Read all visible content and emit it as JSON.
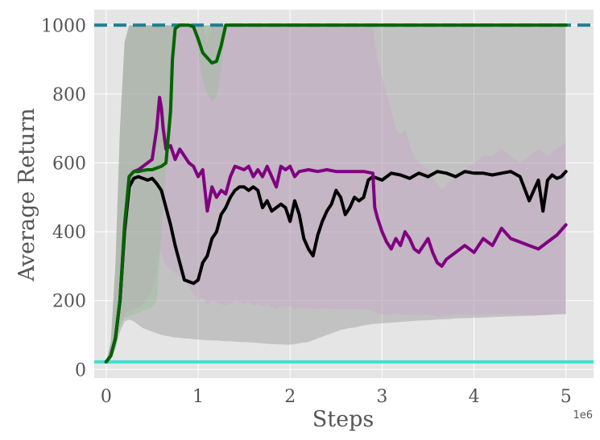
{
  "chart_data": {
    "type": "line",
    "xlabel": "Steps",
    "ylabel": "Average Return",
    "x_offset_label": "1e6",
    "xlim": [
      -0.13,
      5.3
    ],
    "ylim": [
      -25,
      1045
    ],
    "x_ticks": [
      0,
      1,
      2,
      3,
      4,
      5
    ],
    "y_ticks": [
      0,
      200,
      400,
      600,
      800,
      1000
    ],
    "grid": true,
    "background": "#e5e5e5",
    "reference_lines": [
      {
        "value": 1000,
        "color": "#1f7f8f",
        "style": "dashed"
      },
      {
        "value": 22,
        "color": "#40e0d0",
        "style": "solid"
      }
    ],
    "series": [
      {
        "color": "#000000",
        "band_color": "#808080",
        "x": [
          0,
          0.05,
          0.1,
          0.15,
          0.2,
          0.25,
          0.3,
          0.35,
          0.4,
          0.45,
          0.5,
          0.55,
          0.6,
          0.65,
          0.7,
          0.75,
          0.8,
          0.85,
          0.9,
          0.95,
          1.0,
          1.05,
          1.1,
          1.15,
          1.2,
          1.25,
          1.3,
          1.35,
          1.4,
          1.45,
          1.5,
          1.55,
          1.6,
          1.65,
          1.7,
          1.75,
          1.8,
          1.85,
          1.9,
          1.95,
          2.0,
          2.05,
          2.1,
          2.15,
          2.2,
          2.25,
          2.3,
          2.35,
          2.4,
          2.45,
          2.5,
          2.55,
          2.6,
          2.65,
          2.7,
          2.75,
          2.8,
          2.85,
          2.9,
          2.95,
          3.0,
          3.05,
          3.1,
          3.2,
          3.3,
          3.4,
          3.5,
          3.6,
          3.7,
          3.8,
          3.9,
          4.0,
          4.1,
          4.2,
          4.3,
          4.4,
          4.5,
          4.6,
          4.65,
          4.7,
          4.75,
          4.8,
          4.85,
          4.9,
          4.95,
          5.0
        ],
        "y": [
          22,
          40,
          90,
          200,
          400,
          530,
          555,
          560,
          555,
          550,
          555,
          540,
          520,
          470,
          420,
          360,
          310,
          260,
          255,
          250,
          260,
          310,
          330,
          380,
          400,
          450,
          470,
          500,
          520,
          530,
          530,
          520,
          530,
          520,
          470,
          490,
          460,
          470,
          480,
          470,
          430,
          490,
          450,
          380,
          350,
          330,
          390,
          430,
          460,
          480,
          520,
          500,
          450,
          470,
          500,
          490,
          500,
          550,
          560,
          555,
          550,
          560,
          570,
          565,
          555,
          570,
          560,
          575,
          570,
          560,
          575,
          570,
          570,
          565,
          570,
          575,
          560,
          490,
          520,
          550,
          460,
          550,
          565,
          555,
          560,
          575
        ],
        "upper": [
          22,
          80,
          300,
          700,
          950,
          1000,
          1000,
          1000,
          1000,
          1000,
          1000,
          1000,
          1000,
          1000,
          1000,
          1000,
          1000,
          1000,
          1000,
          1000,
          1000,
          1000,
          1000,
          1000,
          1000,
          1000,
          1000,
          1000,
          1000,
          1000,
          1000,
          1000,
          1000,
          1000,
          1000,
          1000,
          1000,
          1000,
          1000,
          1000,
          1000,
          1000,
          1000,
          1000,
          1000,
          1000,
          1000,
          1000,
          1000,
          1000,
          1000,
          1000,
          1000,
          1000,
          1000,
          1000,
          1000,
          1000,
          1000,
          1000,
          1000,
          1000,
          1000,
          1000,
          1000,
          1000,
          1000,
          1000,
          1000,
          1000,
          1000,
          1000,
          1000,
          1000,
          1000,
          1000,
          1000,
          1000,
          1000,
          1000,
          1000,
          1000,
          1000,
          1000,
          1000,
          1000
        ],
        "lower": [
          22,
          30,
          60,
          110,
          140,
          145,
          140,
          130,
          120,
          115,
          110,
          105,
          100,
          98,
          95,
          93,
          92,
          90,
          90,
          88,
          87,
          86,
          85,
          84,
          84,
          83,
          82,
          82,
          81,
          80,
          80,
          79,
          78,
          77,
          76,
          75,
          74,
          73,
          73,
          72,
          72,
          74,
          76,
          78,
          80,
          85,
          90,
          95,
          100,
          105,
          110,
          115,
          118,
          120,
          122,
          125,
          128,
          130,
          132,
          133,
          134,
          135,
          136,
          138,
          140,
          142,
          143,
          145,
          146,
          148,
          149,
          150,
          151,
          152,
          153,
          154,
          155,
          156,
          156,
          157,
          158,
          158,
          159,
          160,
          160,
          160
        ]
      },
      {
        "color": "#800080",
        "band_color": "#c8a0c8",
        "x": [
          0,
          0.05,
          0.1,
          0.15,
          0.2,
          0.25,
          0.3,
          0.35,
          0.4,
          0.45,
          0.5,
          0.55,
          0.58,
          0.6,
          0.62,
          0.65,
          0.7,
          0.75,
          0.8,
          0.85,
          0.9,
          0.95,
          1.0,
          1.05,
          1.1,
          1.15,
          1.2,
          1.25,
          1.3,
          1.35,
          1.4,
          1.45,
          1.5,
          1.55,
          1.6,
          1.65,
          1.7,
          1.75,
          1.8,
          1.85,
          1.9,
          1.95,
          2.0,
          2.05,
          2.1,
          2.2,
          2.3,
          2.4,
          2.5,
          2.6,
          2.7,
          2.8,
          2.9,
          2.92,
          2.95,
          3.0,
          3.05,
          3.1,
          3.15,
          3.2,
          3.25,
          3.3,
          3.35,
          3.4,
          3.5,
          3.55,
          3.6,
          3.65,
          3.7,
          3.8,
          3.9,
          4.0,
          4.1,
          4.2,
          4.3,
          4.4,
          4.5,
          4.6,
          4.7,
          4.8,
          4.9,
          5.0
        ],
        "y": [
          22,
          40,
          90,
          200,
          410,
          560,
          575,
          580,
          590,
          600,
          610,
          700,
          790,
          760,
          700,
          640,
          650,
          610,
          640,
          620,
          600,
          590,
          560,
          580,
          460,
          530,
          500,
          520,
          510,
          560,
          590,
          585,
          580,
          590,
          560,
          580,
          560,
          590,
          560,
          530,
          590,
          580,
          590,
          560,
          575,
          580,
          575,
          580,
          575,
          575,
          575,
          575,
          570,
          470,
          440,
          400,
          370,
          350,
          380,
          360,
          400,
          380,
          350,
          340,
          380,
          340,
          310,
          300,
          320,
          340,
          360,
          340,
          380,
          360,
          410,
          380,
          370,
          360,
          350,
          370,
          390,
          420
        ],
        "upper": [
          22,
          80,
          300,
          700,
          950,
          1000,
          1000,
          1000,
          1000,
          1000,
          1000,
          1000,
          1000,
          1000,
          1000,
          1000,
          1000,
          1000,
          1000,
          1000,
          1000,
          1000,
          1000,
          1000,
          950,
          1000,
          1000,
          1000,
          1000,
          1000,
          1000,
          1000,
          1000,
          1000,
          1000,
          1000,
          1000,
          1000,
          1000,
          1000,
          1000,
          1000,
          1000,
          1000,
          1000,
          1000,
          1000,
          1000,
          1000,
          1000,
          1000,
          1000,
          1000,
          950,
          900,
          850,
          800,
          750,
          700,
          680,
          700,
          650,
          620,
          600,
          580,
          560,
          540,
          520,
          540,
          560,
          580,
          600,
          620,
          620,
          640,
          620,
          600,
          620,
          640,
          620,
          640,
          660
        ],
        "lower": [
          22,
          30,
          70,
          130,
          160,
          170,
          175,
          180,
          190,
          210,
          230,
          280,
          350,
          340,
          320,
          300,
          290,
          280,
          270,
          260,
          240,
          220,
          200,
          210,
          190,
          200,
          195,
          190,
          185,
          190,
          200,
          195,
          190,
          195,
          185,
          190,
          185,
          190,
          180,
          175,
          185,
          180,
          185,
          175,
          180,
          178,
          176,
          178,
          175,
          175,
          175,
          174,
          172,
          168,
          165,
          160,
          160,
          160,
          162,
          160,
          160,
          160,
          158,
          158,
          160,
          158,
          155,
          155,
          158,
          160,
          160,
          158,
          160,
          160,
          162,
          160,
          160,
          158,
          158,
          160,
          160,
          162
        ]
      },
      {
        "color": "#006400",
        "band_color": "#90c090",
        "x": [
          0,
          0.05,
          0.1,
          0.15,
          0.2,
          0.25,
          0.3,
          0.35,
          0.4,
          0.45,
          0.5,
          0.55,
          0.6,
          0.65,
          0.7,
          0.72,
          0.75,
          0.8,
          0.85,
          0.9,
          0.95,
          1.0,
          1.05,
          1.1,
          1.15,
          1.2,
          1.25,
          1.3,
          1.4,
          1.5,
          2.0,
          2.5,
          3.0,
          3.5,
          4.0,
          4.5,
          5.0
        ],
        "y": [
          22,
          40,
          90,
          200,
          420,
          560,
          575,
          575,
          578,
          580,
          580,
          585,
          590,
          600,
          750,
          900,
          990,
          1000,
          1000,
          1000,
          995,
          960,
          920,
          905,
          890,
          895,
          940,
          1000,
          1000,
          1000,
          1000,
          1000,
          1000,
          1000,
          1000,
          1000,
          1000
        ],
        "upper": [
          22,
          80,
          300,
          700,
          950,
          1000,
          1000,
          1000,
          1000,
          1000,
          1000,
          1000,
          1000,
          1000,
          1000,
          1000,
          1000,
          1000,
          1000,
          1000,
          1000,
          1000,
          1000,
          1000,
          1000,
          1000,
          1000,
          1000,
          1000,
          1000,
          1000,
          1000,
          1000,
          1000,
          1000,
          1000,
          1000
        ],
        "lower": [
          22,
          30,
          70,
          130,
          150,
          155,
          160,
          165,
          170,
          175,
          180,
          200,
          400,
          600,
          750,
          900,
          990,
          1000,
          1000,
          1000,
          990,
          920,
          840,
          800,
          780,
          790,
          880,
          1000,
          1000,
          1000,
          1000,
          1000,
          1000,
          1000,
          1000,
          1000,
          1000
        ]
      }
    ]
  }
}
